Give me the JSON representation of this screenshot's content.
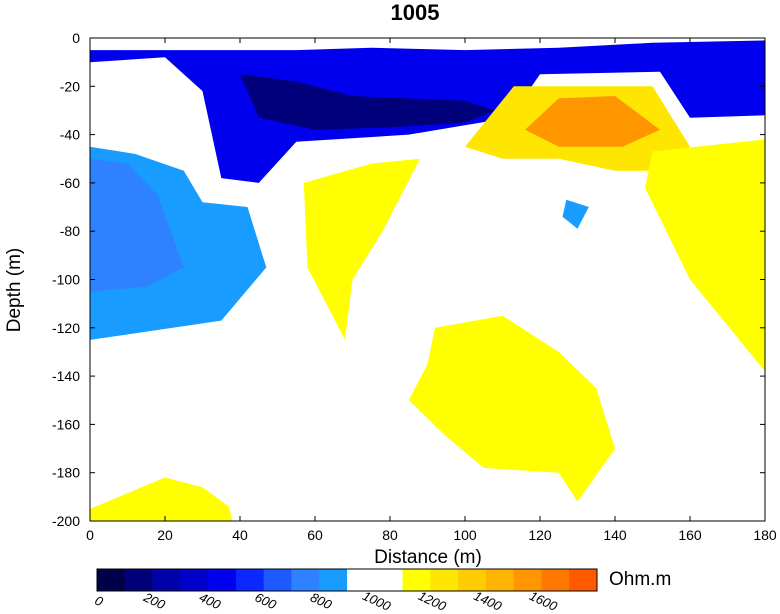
{
  "chart_data": {
    "type": "contour",
    "title": "1005",
    "xlabel": "Distance (m)",
    "ylabel": "Depth (m)",
    "xlim": [
      0,
      180
    ],
    "ylim": [
      -200,
      0
    ],
    "xticks": [
      0,
      20,
      40,
      60,
      80,
      100,
      120,
      140,
      160,
      180
    ],
    "yticks": [
      0,
      -20,
      -40,
      -60,
      -80,
      -100,
      -120,
      -140,
      -160,
      -180,
      -200
    ],
    "colorbar": {
      "unit": "Ohm.m",
      "tick_labels": [
        0,
        200,
        400,
        600,
        800,
        1000,
        1200,
        1400,
        1600
      ],
      "levels": [
        0,
        100,
        200,
        300,
        400,
        500,
        600,
        700,
        800,
        900,
        1000,
        1100,
        1200,
        1300,
        1400,
        1500,
        1600,
        1700,
        1800
      ],
      "colors": [
        "#00004a",
        "#00007a",
        "#0000a8",
        "#0000cc",
        "#0000ee",
        "#0a28ff",
        "#1e5aff",
        "#2e82ff",
        "#199cff",
        "#ffffff",
        "#ffffff",
        "#ffff00",
        "#ffe600",
        "#ffcc00",
        "#ffb400",
        "#ff9600",
        "#ff7800",
        "#ff5a00"
      ]
    },
    "regions": [
      {
        "name": "surface-conductor",
        "level": 400,
        "polygon": [
          [
            0,
            -5
          ],
          [
            40,
            -5
          ],
          [
            55,
            -5
          ],
          [
            75,
            -4
          ],
          [
            100,
            -5
          ],
          [
            125,
            -4
          ],
          [
            150,
            -2
          ],
          [
            180,
            -1
          ],
          [
            180,
            -32
          ],
          [
            160,
            -33
          ],
          [
            152,
            -14
          ],
          [
            120,
            -15
          ],
          [
            112,
            -33
          ],
          [
            85,
            -40
          ],
          [
            55,
            -43
          ],
          [
            45,
            -60
          ],
          [
            35,
            -58
          ],
          [
            30,
            -22
          ],
          [
            20,
            -8
          ],
          [
            0,
            -10
          ]
        ]
      },
      {
        "name": "surface-conductor-core",
        "level": 100,
        "polygon": [
          [
            40,
            -15
          ],
          [
            55,
            -18
          ],
          [
            70,
            -24
          ],
          [
            85,
            -25
          ],
          [
            100,
            -26
          ],
          [
            108,
            -30
          ],
          [
            100,
            -35
          ],
          [
            80,
            -37
          ],
          [
            60,
            -38
          ],
          [
            45,
            -33
          ]
        ]
      },
      {
        "name": "left-conductor",
        "level": 800,
        "polygon": [
          [
            0,
            -45
          ],
          [
            12,
            -48
          ],
          [
            25,
            -55
          ],
          [
            30,
            -68
          ],
          [
            42,
            -70
          ],
          [
            47,
            -95
          ],
          [
            35,
            -117
          ],
          [
            0,
            -125
          ]
        ]
      },
      {
        "name": "left-conductor-core",
        "level": 700,
        "polygon": [
          [
            0,
            -50
          ],
          [
            10,
            -52
          ],
          [
            18,
            -65
          ],
          [
            22,
            -82
          ],
          [
            25,
            -95
          ],
          [
            15,
            -103
          ],
          [
            0,
            -105
          ]
        ]
      },
      {
        "name": "small-conductor",
        "level": 800,
        "polygon": [
          [
            127,
            -67
          ],
          [
            133,
            -70
          ],
          [
            130,
            -79
          ],
          [
            126,
            -74
          ]
        ]
      },
      {
        "name": "upper-resistor-center",
        "level": 1200,
        "polygon": [
          [
            113,
            -20
          ],
          [
            150,
            -20
          ],
          [
            160,
            -45
          ],
          [
            150,
            -55
          ],
          [
            140,
            -55
          ],
          [
            125,
            -50
          ],
          [
            110,
            -50
          ],
          [
            100,
            -45
          ]
        ]
      },
      {
        "name": "upper-resistor-core",
        "level": 1500,
        "polygon": [
          [
            125,
            -25
          ],
          [
            140,
            -24
          ],
          [
            152,
            -38
          ],
          [
            142,
            -45
          ],
          [
            125,
            -45
          ],
          [
            116,
            -38
          ]
        ]
      },
      {
        "name": "right-resistor",
        "level": 1100,
        "polygon": [
          [
            150,
            -47
          ],
          [
            180,
            -42
          ],
          [
            180,
            -138
          ],
          [
            160,
            -100
          ],
          [
            148,
            -62
          ]
        ]
      },
      {
        "name": "mid-resistor",
        "level": 1100,
        "polygon": [
          [
            57,
            -60
          ],
          [
            75,
            -52
          ],
          [
            88,
            -50
          ],
          [
            78,
            -80
          ],
          [
            70,
            -100
          ],
          [
            68,
            -125
          ],
          [
            58,
            -95
          ]
        ]
      },
      {
        "name": "deep-resistor",
        "level": 1100,
        "polygon": [
          [
            92,
            -120
          ],
          [
            110,
            -115
          ],
          [
            125,
            -130
          ],
          [
            135,
            -145
          ],
          [
            140,
            -170
          ],
          [
            130,
            -192
          ],
          [
            125,
            -180
          ],
          [
            105,
            -178
          ],
          [
            95,
            -165
          ],
          [
            85,
            -150
          ],
          [
            90,
            -135
          ]
        ]
      },
      {
        "name": "bottom-left-resistor",
        "level": 1100,
        "polygon": [
          [
            0,
            -195
          ],
          [
            20,
            -182
          ],
          [
            30,
            -186
          ],
          [
            37,
            -194
          ],
          [
            38,
            -200
          ],
          [
            0,
            -200
          ]
        ]
      }
    ]
  }
}
